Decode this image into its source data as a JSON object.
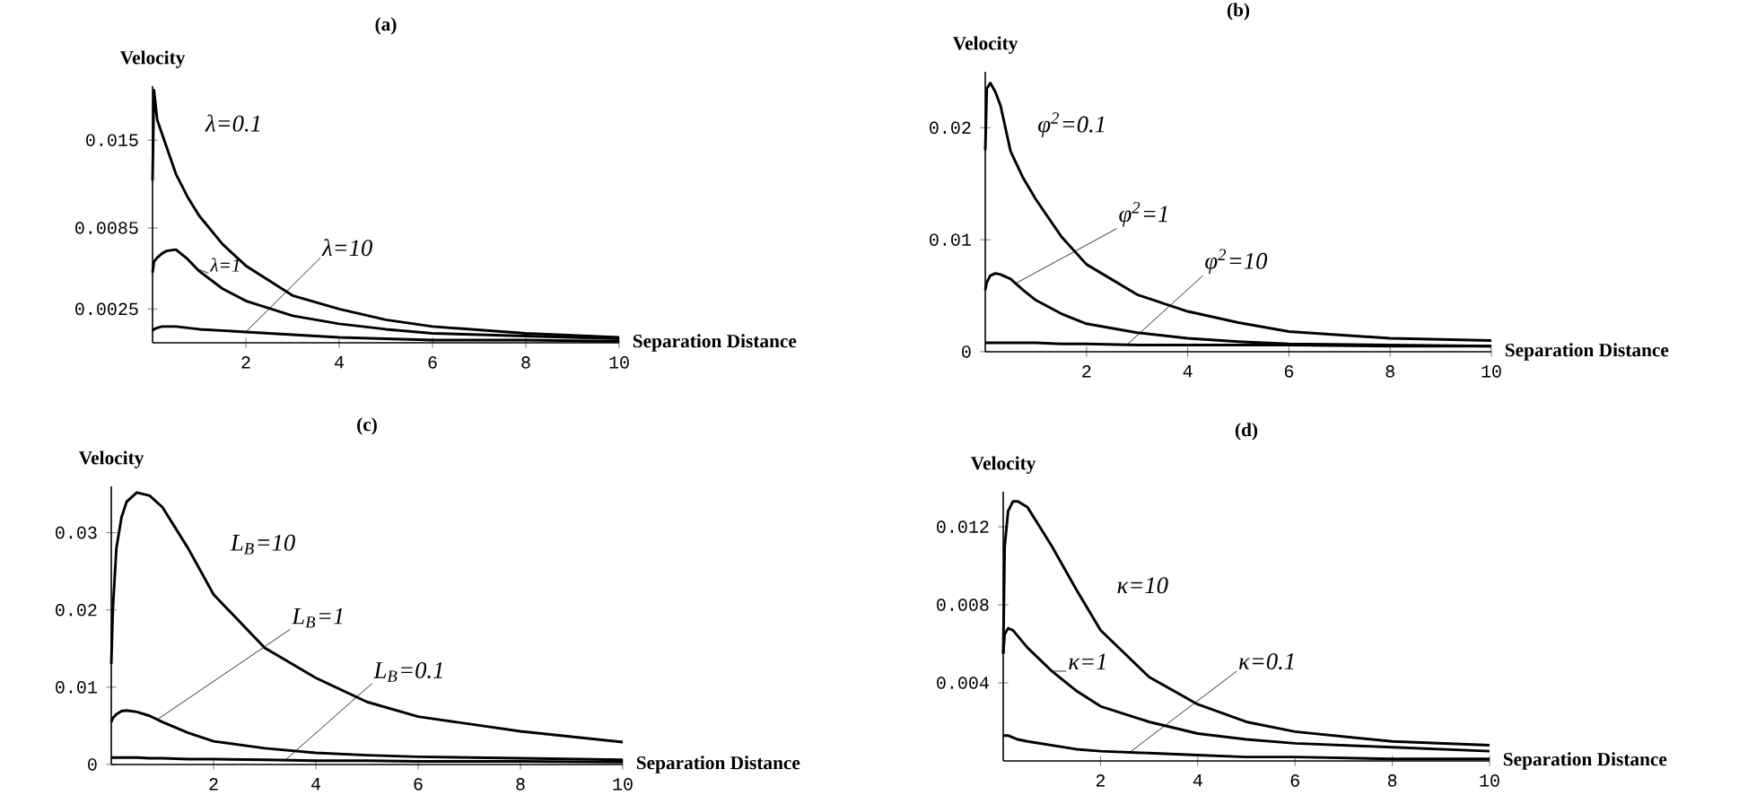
{
  "chart_data": [
    {
      "type": "line",
      "title": "(a)",
      "xlabel": "Separation Distance",
      "ylabel": "Velocity",
      "xlim": [
        0,
        10
      ],
      "ylim": [
        0,
        0.019
      ],
      "xticks": [
        2,
        4,
        6,
        8,
        10
      ],
      "yticks": [
        0.0025,
        0.0085,
        0.015
      ],
      "x": [
        0,
        0.03,
        0.1,
        0.2,
        0.3,
        0.5,
        0.75,
        1,
        1.5,
        2,
        3,
        4,
        5,
        6,
        8,
        10
      ],
      "series": [
        {
          "name": "λ=0.1",
          "color": "#000000",
          "values": [
            0.012,
            0.0187,
            0.0165,
            0.0155,
            0.0145,
            0.0125,
            0.0108,
            0.0094,
            0.0073,
            0.0057,
            0.0035,
            0.0025,
            0.0017,
            0.0012,
            0.0007,
            0.0004
          ]
        },
        {
          "name": "λ=1",
          "color": "#000000",
          "values": [
            0.0052,
            0.006,
            0.0063,
            0.0066,
            0.0068,
            0.0069,
            0.0062,
            0.0053,
            0.004,
            0.0031,
            0.002,
            0.0014,
            0.001,
            0.0007,
            0.0005,
            0.0003
          ]
        },
        {
          "name": "λ=10",
          "color": "#000000",
          "values": [
            0.0009,
            0.001,
            0.0011,
            0.0012,
            0.0012,
            0.0012,
            0.0011,
            0.001,
            0.0009,
            0.0008,
            0.0006,
            0.0004,
            0.0003,
            0.0002,
            0.0002,
            0.0001
          ]
        }
      ]
    },
    {
      "type": "line",
      "title": "(b)",
      "xlabel": "Separation Distance",
      "ylabel": "Velocity",
      "xlim": [
        0,
        10
      ],
      "ylim": [
        0,
        0.025
      ],
      "xticks": [
        2,
        4,
        6,
        8,
        10
      ],
      "yticks": [
        0,
        0.01,
        0.02
      ],
      "x": [
        0,
        0.03,
        0.1,
        0.2,
        0.3,
        0.5,
        0.75,
        1,
        1.5,
        2,
        3,
        4,
        5,
        6,
        8,
        10
      ],
      "series": [
        {
          "name": "φ$^{2}$=0.1",
          "color": "#000000",
          "values": [
            0.018,
            0.0235,
            0.024,
            0.0232,
            0.022,
            0.0179,
            0.0155,
            0.0136,
            0.0103,
            0.0078,
            0.0051,
            0.0036,
            0.0026,
            0.0018,
            0.0012,
            0.001
          ]
        },
        {
          "name": "φ$^{2}$=1",
          "color": "#000000",
          "values": [
            0.0055,
            0.0062,
            0.0068,
            0.007,
            0.0069,
            0.0065,
            0.0055,
            0.0046,
            0.0034,
            0.0025,
            0.0017,
            0.0012,
            0.0009,
            0.0007,
            0.0006,
            0.0005
          ]
        },
        {
          "name": "φ$^{2}$=10",
          "color": "#000000",
          "values": [
            0.0008,
            0.0008,
            0.0008,
            0.0008,
            0.0008,
            0.0008,
            0.0008,
            0.0008,
            0.0007,
            0.0007,
            0.0006,
            0.0006,
            0.0006,
            0.0006,
            0.0005,
            0.0005
          ]
        }
      ]
    },
    {
      "type": "line",
      "title": "(c)",
      "xlabel": "Separation Distance",
      "ylabel": "Velocity",
      "xlim": [
        0,
        10
      ],
      "ylim": [
        0,
        0.036
      ],
      "xticks": [
        2,
        4,
        6,
        8,
        10
      ],
      "yticks": [
        0,
        0.01,
        0.02,
        0.03
      ],
      "x": [
        0,
        0.03,
        0.1,
        0.2,
        0.3,
        0.5,
        0.75,
        1,
        1.5,
        2,
        3,
        4,
        5,
        6,
        8,
        10
      ],
      "series": [
        {
          "name": "L$_{B}$=10",
          "color": "#000000",
          "values": [
            0.013,
            0.02,
            0.028,
            0.032,
            0.034,
            0.0352,
            0.0348,
            0.0333,
            0.028,
            0.022,
            0.0151,
            0.0112,
            0.0081,
            0.0062,
            0.0043,
            0.0029
          ]
        },
        {
          "name": "L$_{B}$=1",
          "color": "#000000",
          "values": [
            0.0055,
            0.006,
            0.0065,
            0.0069,
            0.007,
            0.0068,
            0.0063,
            0.0055,
            0.0041,
            0.003,
            0.0021,
            0.0015,
            0.0012,
            0.001,
            0.0008,
            0.0006
          ]
        },
        {
          "name": "L$_{B}$=0.1",
          "color": "#000000",
          "values": [
            0.0009,
            0.0009,
            0.0009,
            0.0009,
            0.0009,
            0.0009,
            0.0008,
            0.0008,
            0.0007,
            0.0007,
            0.0006,
            0.0005,
            0.0005,
            0.0004,
            0.0004,
            0.0003
          ]
        }
      ]
    },
    {
      "type": "line",
      "title": "(d)",
      "xlabel": "Separation Distance",
      "ylabel": "Velocity",
      "xlim": [
        0,
        10
      ],
      "ylim": [
        0,
        0.0138
      ],
      "xticks": [
        2,
        4,
        6,
        8,
        10
      ],
      "yticks": [
        0.004,
        0.008,
        0.012
      ],
      "x": [
        0,
        0.03,
        0.1,
        0.2,
        0.3,
        0.5,
        0.75,
        1,
        1.5,
        2,
        3,
        4,
        5,
        6,
        8,
        10
      ],
      "series": [
        {
          "name": "κ=10",
          "color": "#000000",
          "values": [
            0.0055,
            0.011,
            0.0128,
            0.0133,
            0.0133,
            0.013,
            0.012,
            0.011,
            0.0088,
            0.0067,
            0.0043,
            0.0029,
            0.002,
            0.0015,
            0.001,
            0.0008
          ]
        },
        {
          "name": "κ=1",
          "color": "#000000",
          "values": [
            0.0055,
            0.0065,
            0.0068,
            0.0067,
            0.0064,
            0.0058,
            0.0052,
            0.0046,
            0.0036,
            0.0028,
            0.002,
            0.0014,
            0.0011,
            0.0009,
            0.0007,
            0.0005
          ]
        },
        {
          "name": "κ=0.1",
          "color": "#000000",
          "values": [
            0.0013,
            0.0013,
            0.0013,
            0.0012,
            0.0011,
            0.001,
            0.0009,
            0.0008,
            0.0006,
            0.0005,
            0.0004,
            0.0003,
            0.0002,
            0.0002,
            0.0001,
            0.0001
          ]
        }
      ]
    }
  ]
}
